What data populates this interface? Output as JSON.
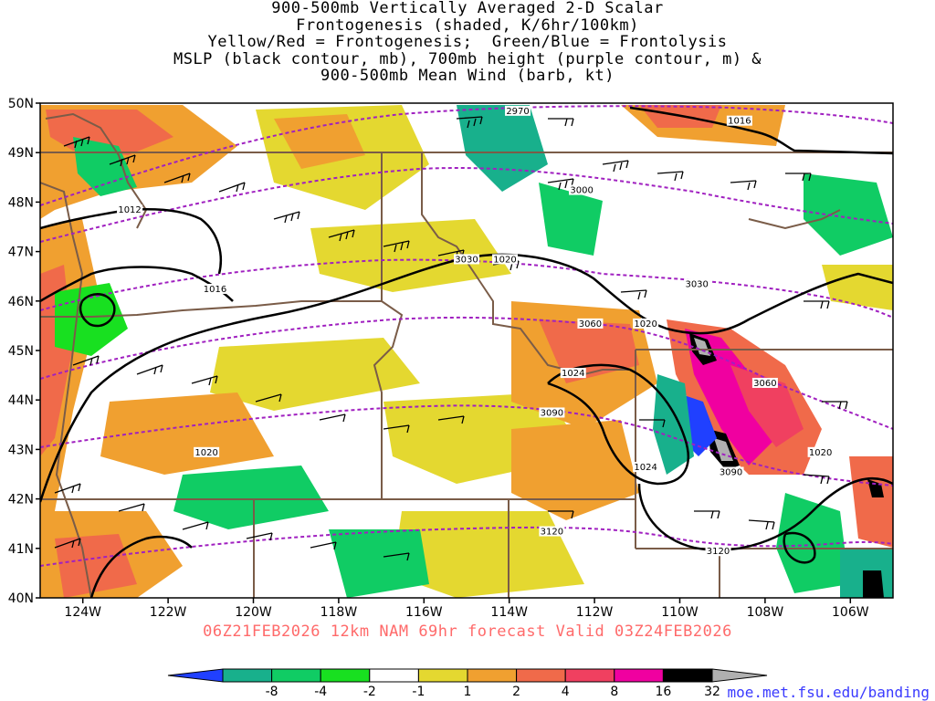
{
  "title": {
    "lines": [
      "900-500mb Vertically Averaged 2-D Scalar",
      "Frontogenesis (shaded, K/6hr/100km)",
      "Yellow/Red = Frontogenesis;  Green/Blue = Frontolysis",
      "MSLP (black contour, mb), 700mb height (purple contour, m) &",
      "900-500mb Mean Wind (barb, kt)"
    ]
  },
  "map": {
    "lon_range": [
      -125,
      -105
    ],
    "lat_range": [
      40,
      50
    ],
    "lat_labels": [
      {
        "lat": 50,
        "text": "50N"
      },
      {
        "lat": 49,
        "text": "49N"
      },
      {
        "lat": 48,
        "text": "48N"
      },
      {
        "lat": 47,
        "text": "47N"
      },
      {
        "lat": 46,
        "text": "46N"
      },
      {
        "lat": 45,
        "text": "45N"
      },
      {
        "lat": 44,
        "text": "44N"
      },
      {
        "lat": 43,
        "text": "43N"
      },
      {
        "lat": 42,
        "text": "42N"
      },
      {
        "lat": 41,
        "text": "41N"
      },
      {
        "lat": 40,
        "text": "40N"
      }
    ],
    "lon_labels": [
      {
        "lon": -124,
        "text": "124W"
      },
      {
        "lon": -122,
        "text": "122W"
      },
      {
        "lon": -120,
        "text": "120W"
      },
      {
        "lon": -118,
        "text": "118W"
      },
      {
        "lon": -116,
        "text": "116W"
      },
      {
        "lon": -114,
        "text": "114W"
      },
      {
        "lon": -112,
        "text": "112W"
      },
      {
        "lon": -110,
        "text": "110W"
      },
      {
        "lon": -108,
        "text": "108W"
      },
      {
        "lon": -106,
        "text": "106W"
      }
    ],
    "mslp_labels": [
      {
        "text": "1016",
        "lon": -108.6,
        "lat": 49.6
      },
      {
        "text": "1012",
        "lon": -122.9,
        "lat": 47.8
      },
      {
        "text": "1016",
        "lon": -120.9,
        "lat": 46.2
      },
      {
        "text": "1020",
        "lon": -114.1,
        "lat": 46.8
      },
      {
        "text": "1020",
        "lon": -110.8,
        "lat": 45.5
      },
      {
        "text": "1024",
        "lon": -112.5,
        "lat": 44.5
      },
      {
        "text": "1020",
        "lon": -121.1,
        "lat": 42.9
      },
      {
        "text": "1024",
        "lon": -110.8,
        "lat": 42.6
      },
      {
        "text": "1020",
        "lon": -106.7,
        "lat": 42.9
      }
    ],
    "height_labels": [
      {
        "text": "2970",
        "lon": -113.8,
        "lat": 49.8
      },
      {
        "text": "3000",
        "lon": -112.3,
        "lat": 48.2
      },
      {
        "text": "3030",
        "lon": -115.0,
        "lat": 46.8
      },
      {
        "text": "3030",
        "lon": -109.6,
        "lat": 46.3
      },
      {
        "text": "3060",
        "lon": -112.1,
        "lat": 45.5
      },
      {
        "text": "3060",
        "lon": -108.0,
        "lat": 44.3
      },
      {
        "text": "3090",
        "lon": -113.0,
        "lat": 43.7
      },
      {
        "text": "3090",
        "lon": -108.8,
        "lat": 42.5
      },
      {
        "text": "3120",
        "lon": -113.0,
        "lat": 41.3
      },
      {
        "text": "3120",
        "lon": -109.1,
        "lat": 40.9
      }
    ],
    "colors": {
      "mslp": "#000000",
      "height": "#a020c0",
      "borders": "#7a5c48",
      "barbs": "#000000"
    }
  },
  "colorbar": {
    "labels": [
      "-8",
      "-4",
      "-2",
      "-1",
      "1",
      "2",
      "4",
      "8",
      "16",
      "32"
    ],
    "colors": [
      "#2040ff",
      "#18b08c",
      "#10cc64",
      "#18e020",
      "#ffffff",
      "#e4d830",
      "#f0a030",
      "#f06a4a",
      "#f04060",
      "#f000a0",
      "#000000",
      "#b0b0b0"
    ]
  },
  "valid_line": "06Z21FEB2026 12km NAM 69hr forecast Valid 03Z24FEB2026",
  "source": "moe.met.fsu.edu/banding"
}
